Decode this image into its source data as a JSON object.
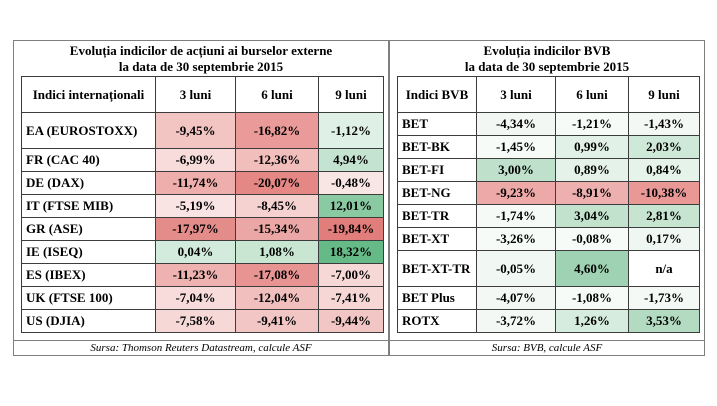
{
  "left": {
    "title_line1": "Evoluția indicilor de acțiuni ai burselor externe",
    "title_line2": "la data de 30 septembrie 2015",
    "headers": [
      "Indici internaționali",
      "3 luni",
      "6 luni",
      "9 luni"
    ],
    "rows": [
      {
        "name": "EA (EUROSTOXX)",
        "values": [
          "-9,45%",
          "-16,82%",
          "-1,12%"
        ]
      },
      {
        "name": "FR (CAC 40)",
        "values": [
          "-6,99%",
          "-12,36%",
          "4,94%"
        ]
      },
      {
        "name": "DE (DAX)",
        "values": [
          "-11,74%",
          "-20,07%",
          "-0,48%"
        ]
      },
      {
        "name": "IT (FTSE MIB)",
        "values": [
          "-5,19%",
          "-8,45%",
          "12,01%"
        ]
      },
      {
        "name": "GR (ASE)",
        "values": [
          "-17,97%",
          "-15,34%",
          "-19,84%"
        ]
      },
      {
        "name": "IE (ISEQ)",
        "values": [
          "0,04%",
          "1,08%",
          "18,32%"
        ]
      },
      {
        "name": "ES (IBEX)",
        "values": [
          "-11,23%",
          "-17,08%",
          "-7,00%"
        ]
      },
      {
        "name": "UK (FTSE 100)",
        "values": [
          "-7,04%",
          "-12,04%",
          "-7,41%"
        ]
      },
      {
        "name": "US (DJIA)",
        "values": [
          "-7,58%",
          "-9,41%",
          "-9,44%"
        ]
      }
    ],
    "colors": [
      [
        "#f2c4c2",
        "#ea9a98",
        "#dff0e6"
      ],
      [
        "#f7dcdb",
        "#f1bebc",
        "#c4e3d0"
      ],
      [
        "#edaeac",
        "#e48785",
        "#f8e6e5"
      ],
      [
        "#f9e4e3",
        "#f5d1d0",
        "#8acaa3"
      ],
      [
        "#e48c8a",
        "#eaa7a5",
        "#e17d7a"
      ],
      [
        "#d3ebdc",
        "#c9e6d3",
        "#66ba88"
      ],
      [
        "#eeb2b0",
        "#e79492",
        "#f6d8d7"
      ],
      [
        "#f7dcdb",
        "#f1bfbd",
        "#f6d7d6"
      ],
      [
        "#f6d8d7",
        "#f2c6c4",
        "#f2c6c4"
      ]
    ],
    "source": "Sursa: Thomson Reuters Datastream, calcule ASF"
  },
  "right": {
    "title_line1": "Evoluția indicilor BVB",
    "title_line2": "la data de 30 septembrie 2015",
    "headers": [
      "Indici BVB",
      "3 luni",
      "6 luni",
      "9 luni"
    ],
    "rows": [
      {
        "name": "BET",
        "values": [
          "-4,34%",
          "-1,21%",
          "-1,43%"
        ]
      },
      {
        "name": "BET-BK",
        "values": [
          "-1,45%",
          "0,99%",
          "2,03%"
        ]
      },
      {
        "name": "BET-FI",
        "values": [
          "3,00%",
          "0,89%",
          "0,84%"
        ]
      },
      {
        "name": "BET-NG",
        "values": [
          "-9,23%",
          "-8,91%",
          "-10,38%"
        ]
      },
      {
        "name": "BET-TR",
        "values": [
          "-1,74%",
          "3,04%",
          "2,81%"
        ]
      },
      {
        "name": "BET-XT",
        "values": [
          "-3,26%",
          "-0,08%",
          "0,17%"
        ]
      },
      {
        "name": "BET-XT-TR",
        "values": [
          "-0,05%",
          "4,60%",
          "n/a"
        ]
      },
      {
        "name": "BET Plus",
        "values": [
          "-4,07%",
          "-1,08%",
          "-1,73%"
        ]
      },
      {
        "name": "ROTX",
        "values": [
          "-3,72%",
          "1,26%",
          "3,53%"
        ]
      }
    ],
    "colors": [
      [
        "#f3f7f4",
        "#f6fbf8",
        "#f4f8f5"
      ],
      [
        "#f6fbf8",
        "#e2f1e7",
        "#cfe9d8"
      ],
      [
        "#bfe1cb",
        "#e4f2e9",
        "#e6f3ea"
      ],
      [
        "#eda9a7",
        "#eeb0ae",
        "#e99896"
      ],
      [
        "#f5faf6",
        "#c2e2cd",
        "#c6e4d0"
      ],
      [
        "#f7fbf8",
        "#f7fbf8",
        "#eef7f1"
      ],
      [
        "#f1f8f3",
        "#9fd2b2",
        "#ffffff"
      ],
      [
        "#f4f8f5",
        "#f6fbf8",
        "#f4f9f5"
      ],
      [
        "#f4f8f5",
        "#d6ecde",
        "#b3dbc1"
      ]
    ],
    "source": "Sursa: BVB, calcule ASF"
  }
}
